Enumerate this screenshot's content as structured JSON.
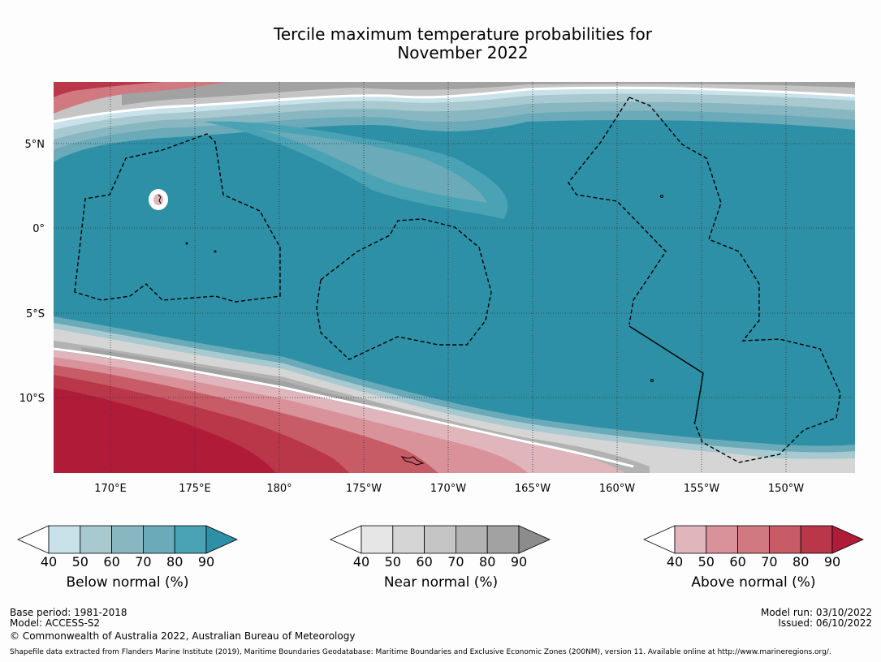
{
  "title": {
    "line1": "Tercile maximum temperature probabilities for",
    "line2": "November 2022"
  },
  "map": {
    "lat_ticks": [
      "5°N",
      "0°",
      "5°S",
      "10°S"
    ],
    "lon_ticks": [
      "170°E",
      "175°E",
      "180°",
      "175°W",
      "170°W",
      "165°W",
      "160°W",
      "155°W",
      "150°W"
    ],
    "lat_range": [
      -14.5,
      8.5
    ],
    "lon_range": [
      166.6,
      214.0
    ],
    "colors": {
      "below": [
        "#c9e2e9",
        "#a8c9d0",
        "#89b7c1",
        "#6aaab9",
        "#4aa3b5",
        "#2e90a6"
      ],
      "near": [
        "#e6e6e6",
        "#d5d5d5",
        "#c5c5c5",
        "#b2b2b2",
        "#a2a2a2",
        "#8c8c8c"
      ],
      "above": [
        "#e0b5bc",
        "#d9929a",
        "#d07980",
        "#c75c67",
        "#ba3649",
        "#b01c38"
      ]
    }
  },
  "colorbars": [
    {
      "id": "below",
      "label": "Below normal (%)",
      "ticks": [
        "40",
        "50",
        "60",
        "70",
        "80",
        "90"
      ],
      "colors": [
        "#c9e2e9",
        "#a8c9d0",
        "#89b7c1",
        "#6aaab9",
        "#4aa3b5",
        "#2e90a6"
      ]
    },
    {
      "id": "near",
      "label": "Near normal (%)",
      "ticks": [
        "40",
        "50",
        "60",
        "70",
        "80",
        "90"
      ],
      "colors": [
        "#e6e6e6",
        "#d5d5d5",
        "#c5c5c5",
        "#b2b2b2",
        "#a2a2a2",
        "#8c8c8c"
      ]
    },
    {
      "id": "above",
      "label": "Above normal (%)",
      "ticks": [
        "40",
        "50",
        "60",
        "70",
        "80",
        "90"
      ],
      "colors": [
        "#e0b5bc",
        "#d9929a",
        "#d07980",
        "#c75c67",
        "#ba3649",
        "#b01c38"
      ]
    }
  ],
  "footer": {
    "base_period": "Base period: 1981-2018",
    "model": "Model: ACCESS-S2",
    "copyright": "© Commonwealth of Australia 2022, Australian Bureau of Meteorology",
    "model_run": "Model run: 03/10/2022",
    "issued": "Issued: 06/10/2022",
    "shapefile": "Shapefile data extracted from Flanders Marine Institute (2019), Maritime Boundaries Geodatabase: Maritime Boundaries and Exclusive Economic Zones (200NM), version 11. Available online at http://www.marineregions.org/."
  }
}
